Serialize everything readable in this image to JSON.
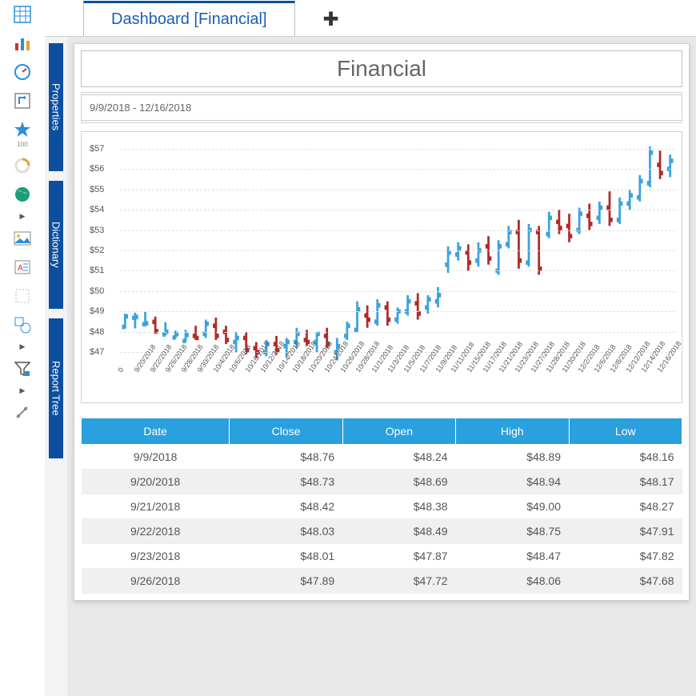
{
  "tab": {
    "label": "Dashboard [Financial]"
  },
  "bookmarks": [
    "Properties",
    "Dictionary",
    "Report Tree"
  ],
  "report": {
    "title": "Financial",
    "date_range": "9/9/2018 - 12/16/2018"
  },
  "chart": {
    "type": "ohlc",
    "ylim": [
      46.5,
      57.5
    ],
    "yticks": [
      47,
      48,
      49,
      50,
      51,
      52,
      53,
      54,
      55,
      56,
      57
    ],
    "ytick_prefix": "$",
    "x_start_label": "0",
    "x_labels": [
      "9/20/2018",
      "9/22/2018",
      "9/26/2018",
      "9/28/2018",
      "9/30/2018",
      "10/4/2018",
      "10/6/2018",
      "10/10/2018",
      "10/12/2018",
      "10/14/2018",
      "10/18/2018",
      "10/20/2018",
      "10/24/2018",
      "10/26/2018",
      "10/28/2018",
      "11/1/2018",
      "11/3/2018",
      "11/5/2018",
      "11/7/2018",
      "11/9/2018",
      "11/11/2018",
      "11/15/2018",
      "11/17/2018",
      "11/21/2018",
      "11/23/2018",
      "11/27/2018",
      "11/28/2018",
      "11/30/2018",
      "12/2/2018",
      "12/6/2018",
      "12/8/2018",
      "12/12/2018",
      "12/14/2018",
      "12/16/2018"
    ],
    "up_color": "#3aa3dc",
    "down_color": "#b22a2a",
    "background_color": "#ffffff",
    "grid_color": "#e6e6e6",
    "series": [
      {
        "o": 48.24,
        "h": 48.89,
        "l": 48.16,
        "c": 48.76
      },
      {
        "o": 48.69,
        "h": 48.94,
        "l": 48.17,
        "c": 48.73
      },
      {
        "o": 48.38,
        "h": 49.0,
        "l": 48.27,
        "c": 48.42
      },
      {
        "o": 48.49,
        "h": 48.75,
        "l": 47.91,
        "c": 48.03
      },
      {
        "o": 47.87,
        "h": 48.47,
        "l": 47.82,
        "c": 48.01
      },
      {
        "o": 47.72,
        "h": 48.06,
        "l": 47.68,
        "c": 47.89
      },
      {
        "o": 47.55,
        "h": 48.1,
        "l": 47.5,
        "c": 47.85
      },
      {
        "o": 47.8,
        "h": 48.3,
        "l": 47.6,
        "c": 47.7
      },
      {
        "o": 47.9,
        "h": 48.6,
        "l": 47.7,
        "c": 48.4
      },
      {
        "o": 48.3,
        "h": 48.7,
        "l": 47.6,
        "c": 47.8
      },
      {
        "o": 48.0,
        "h": 48.3,
        "l": 47.4,
        "c": 47.6
      },
      {
        "o": 47.5,
        "h": 48.0,
        "l": 47.0,
        "c": 47.7
      },
      {
        "o": 47.7,
        "h": 48.0,
        "l": 46.9,
        "c": 47.1
      },
      {
        "o": 47.2,
        "h": 47.5,
        "l": 46.7,
        "c": 47.0
      },
      {
        "o": 47.0,
        "h": 47.6,
        "l": 46.8,
        "c": 47.4
      },
      {
        "o": 47.4,
        "h": 47.8,
        "l": 46.9,
        "c": 47.1
      },
      {
        "o": 47.3,
        "h": 47.7,
        "l": 46.8,
        "c": 47.5
      },
      {
        "o": 47.5,
        "h": 48.2,
        "l": 47.2,
        "c": 47.9
      },
      {
        "o": 47.6,
        "h": 48.1,
        "l": 47.3,
        "c": 47.5
      },
      {
        "o": 47.5,
        "h": 48.0,
        "l": 47.0,
        "c": 47.9
      },
      {
        "o": 47.8,
        "h": 48.2,
        "l": 47.2,
        "c": 47.4
      },
      {
        "o": 47.0,
        "h": 47.7,
        "l": 46.6,
        "c": 47.3
      },
      {
        "o": 47.8,
        "h": 48.5,
        "l": 47.6,
        "c": 48.3
      },
      {
        "o": 48.1,
        "h": 49.5,
        "l": 48.0,
        "c": 49.1
      },
      {
        "o": 48.8,
        "h": 49.3,
        "l": 48.2,
        "c": 48.6
      },
      {
        "o": 48.5,
        "h": 49.6,
        "l": 48.3,
        "c": 49.3
      },
      {
        "o": 49.2,
        "h": 49.5,
        "l": 48.3,
        "c": 48.6
      },
      {
        "o": 48.6,
        "h": 49.2,
        "l": 48.4,
        "c": 49.0
      },
      {
        "o": 49.0,
        "h": 49.8,
        "l": 48.8,
        "c": 49.5
      },
      {
        "o": 49.4,
        "h": 49.9,
        "l": 48.6,
        "c": 48.9
      },
      {
        "o": 49.2,
        "h": 49.8,
        "l": 48.9,
        "c": 49.6
      },
      {
        "o": 49.5,
        "h": 50.2,
        "l": 49.2,
        "c": 49.8
      },
      {
        "o": 51.3,
        "h": 52.2,
        "l": 50.9,
        "c": 51.9
      },
      {
        "o": 51.8,
        "h": 52.4,
        "l": 51.5,
        "c": 52.1
      },
      {
        "o": 51.9,
        "h": 52.3,
        "l": 51.0,
        "c": 51.4
      },
      {
        "o": 51.5,
        "h": 52.4,
        "l": 51.2,
        "c": 52.0
      },
      {
        "o": 52.2,
        "h": 52.7,
        "l": 51.3,
        "c": 51.6
      },
      {
        "o": 51.0,
        "h": 52.5,
        "l": 50.8,
        "c": 52.2
      },
      {
        "o": 52.3,
        "h": 53.2,
        "l": 52.1,
        "c": 52.9
      },
      {
        "o": 52.9,
        "h": 53.5,
        "l": 51.1,
        "c": 51.5
      },
      {
        "o": 51.4,
        "h": 53.3,
        "l": 51.2,
        "c": 53.0
      },
      {
        "o": 52.9,
        "h": 53.2,
        "l": 50.8,
        "c": 51.1
      },
      {
        "o": 52.8,
        "h": 53.9,
        "l": 52.6,
        "c": 53.6
      },
      {
        "o": 53.4,
        "h": 54.0,
        "l": 52.8,
        "c": 53.1
      },
      {
        "o": 53.2,
        "h": 53.8,
        "l": 52.4,
        "c": 52.7
      },
      {
        "o": 53.0,
        "h": 54.1,
        "l": 52.8,
        "c": 53.8
      },
      {
        "o": 53.7,
        "h": 54.3,
        "l": 53.0,
        "c": 53.3
      },
      {
        "o": 53.6,
        "h": 54.4,
        "l": 53.3,
        "c": 54.1
      },
      {
        "o": 54.1,
        "h": 54.9,
        "l": 53.2,
        "c": 53.5
      },
      {
        "o": 53.5,
        "h": 54.6,
        "l": 53.3,
        "c": 54.3
      },
      {
        "o": 54.3,
        "h": 55.0,
        "l": 54.0,
        "c": 54.7
      },
      {
        "o": 54.6,
        "h": 55.7,
        "l": 54.4,
        "c": 55.4
      },
      {
        "o": 55.3,
        "h": 57.1,
        "l": 55.1,
        "c": 56.8
      },
      {
        "o": 56.2,
        "h": 56.9,
        "l": 55.5,
        "c": 55.8
      },
      {
        "o": 56.0,
        "h": 56.7,
        "l": 55.6,
        "c": 56.4
      }
    ]
  },
  "table": {
    "columns": [
      "Date",
      "Close",
      "Open",
      "High",
      "Low"
    ],
    "rows": [
      [
        "9/9/2018",
        "$48.76",
        "$48.24",
        "$48.89",
        "$48.16"
      ],
      [
        "9/20/2018",
        "$48.73",
        "$48.69",
        "$48.94",
        "$48.17"
      ],
      [
        "9/21/2018",
        "$48.42",
        "$48.38",
        "$49.00",
        "$48.27"
      ],
      [
        "9/22/2018",
        "$48.03",
        "$48.49",
        "$48.75",
        "$47.91"
      ],
      [
        "9/23/2018",
        "$48.01",
        "$47.87",
        "$48.47",
        "$47.82"
      ],
      [
        "9/26/2018",
        "$47.89",
        "$47.72",
        "$48.06",
        "$47.68"
      ]
    ],
    "header_bg": "#2aa0de",
    "header_fg": "#ffffff",
    "alt_row_bg": "#f0f0f0"
  },
  "toolbar": {
    "star_label": "100"
  }
}
